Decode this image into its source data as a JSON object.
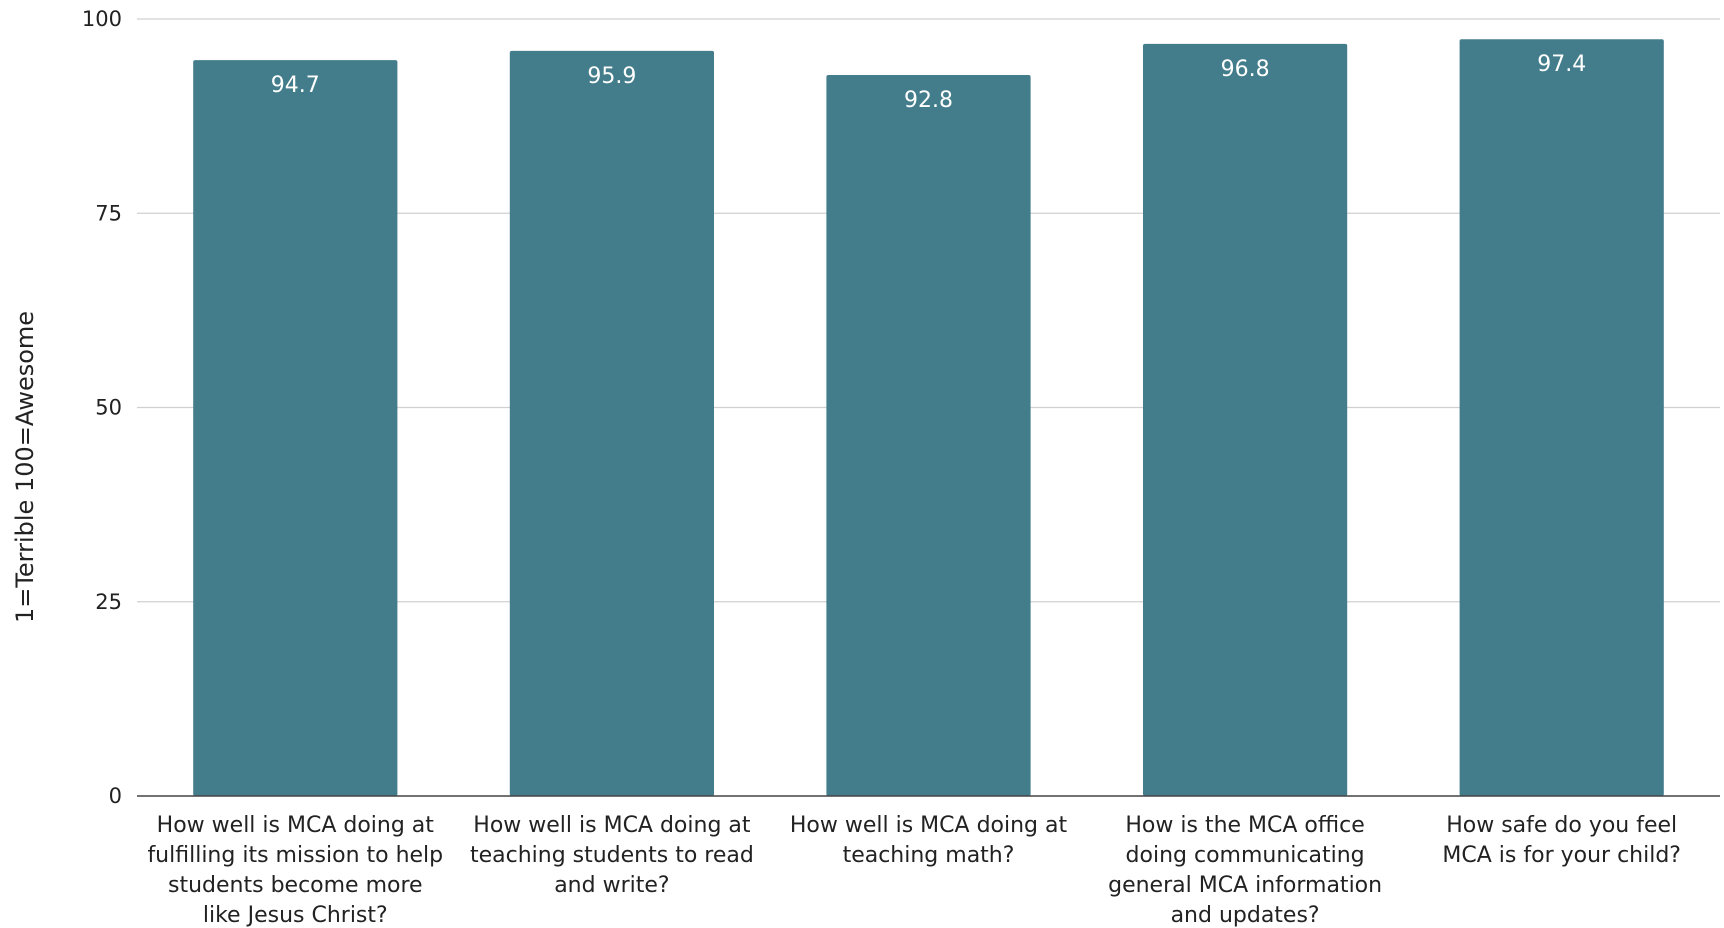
{
  "chart_data": {
    "type": "bar",
    "title": "",
    "xlabel": "",
    "ylabel": "1=Terrible 100=Awesome",
    "ylim": [
      0,
      100
    ],
    "yticks": [
      0,
      25,
      50,
      75,
      100
    ],
    "grid": true,
    "legend": "none",
    "bar_color": "#437d8b",
    "gridline_color": "#d0d0d0",
    "axis_color": "#444444",
    "categories": [
      "How well is MCA doing at fulfilling its mission to help students become more like Jesus Christ?",
      "How well is MCA doing at teaching students to read and write?",
      "How well is MCA doing at teaching math?",
      "How is the MCA office doing communicating general MCA information and updates?",
      "How safe do you feel MCA is for your child?"
    ],
    "category_label_lines": [
      [
        "How well is MCA doing at",
        "fulfilling its mission to help",
        "students become more",
        "like Jesus Christ?"
      ],
      [
        "How well is MCA doing at",
        "teaching students to read",
        "and write?"
      ],
      [
        "How well is MCA doing at",
        "teaching math?"
      ],
      [
        "How is the MCA office",
        "doing communicating",
        "general MCA information",
        "and updates?"
      ],
      [
        "How safe do you feel",
        "MCA is for your child?"
      ]
    ],
    "values": [
      94.7,
      95.9,
      92.8,
      96.8,
      97.4
    ],
    "data_labels": [
      "94.7",
      "95.9",
      "92.8",
      "96.8",
      "97.4"
    ]
  }
}
